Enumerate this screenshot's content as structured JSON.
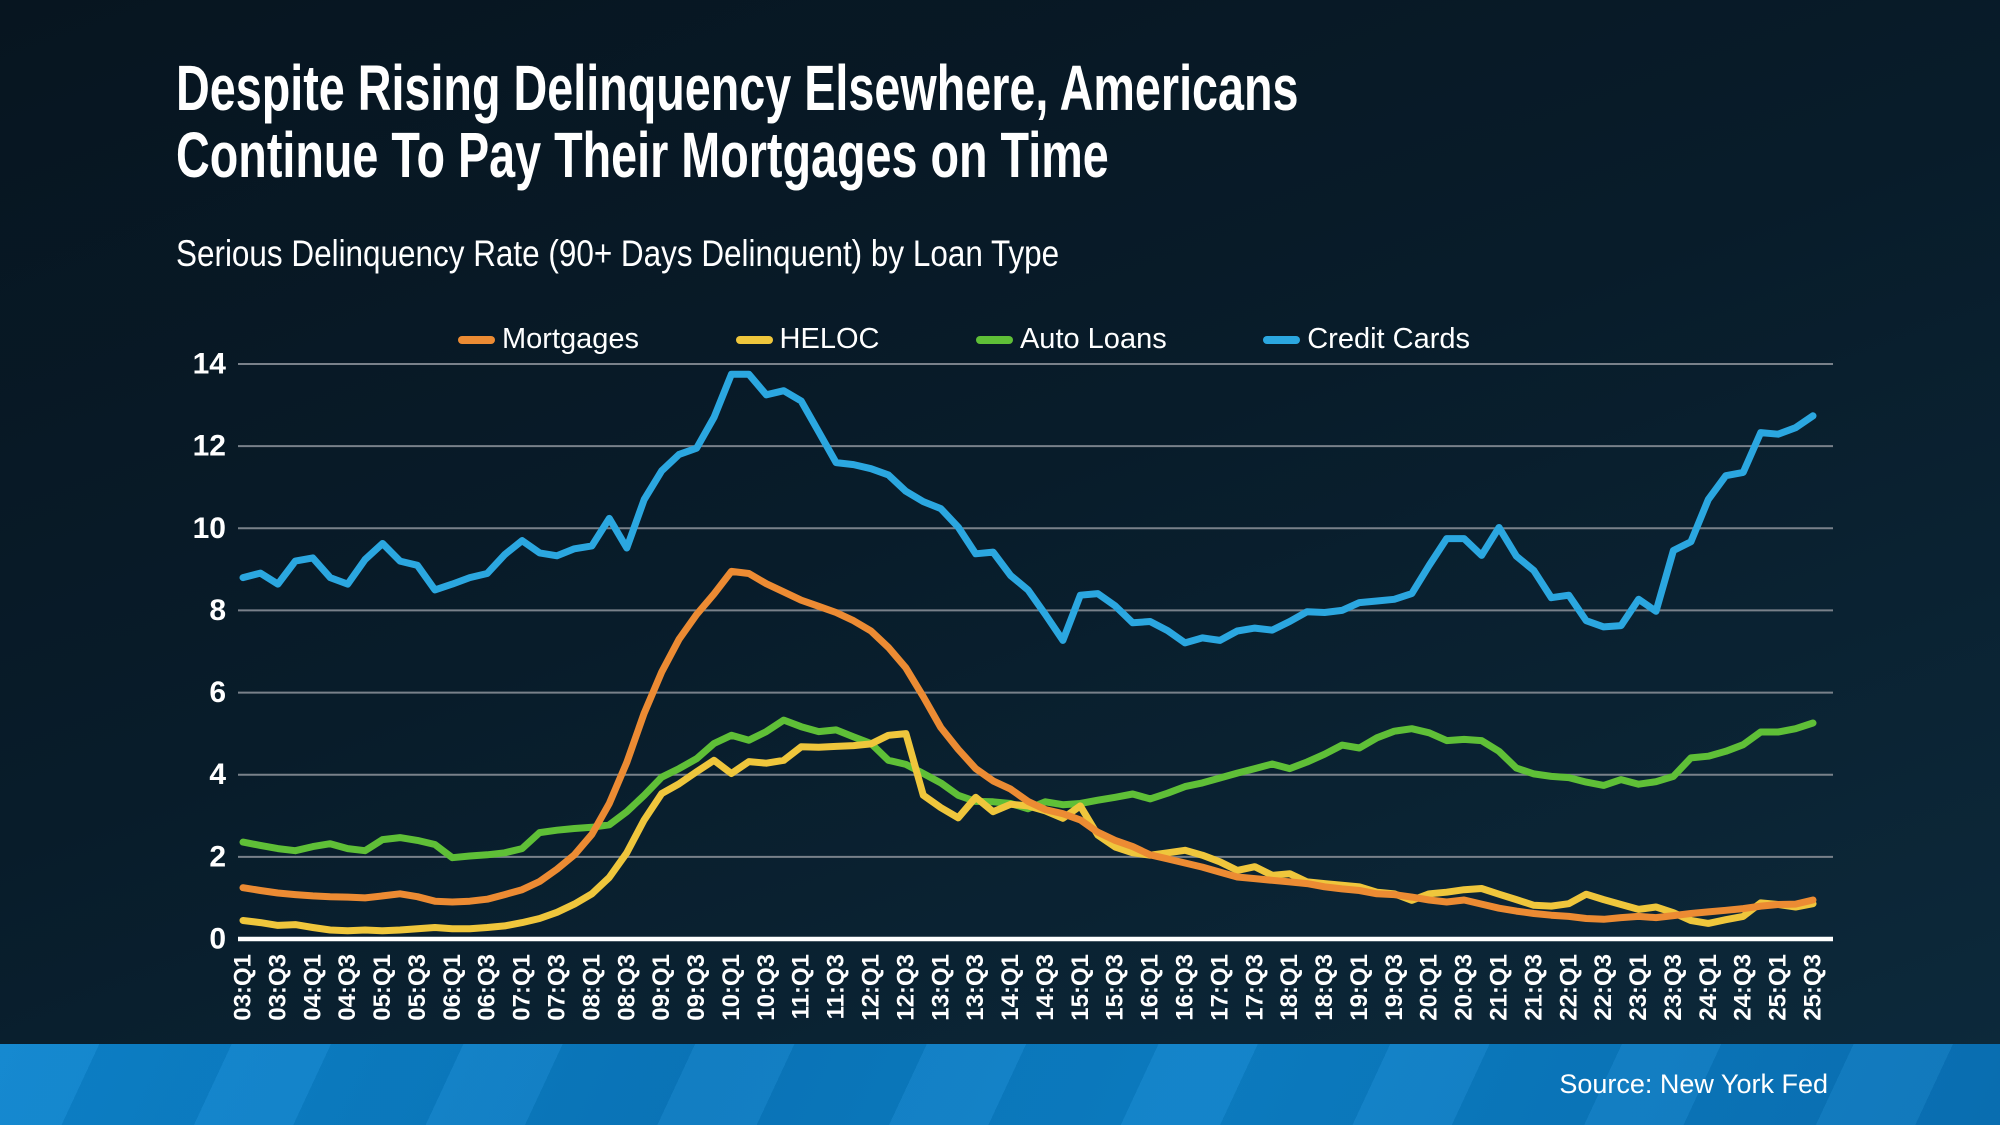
{
  "header": {
    "title_line1": "Despite Rising Delinquency Elsewhere, Americans",
    "title_line2": "Continue To Pay Their Mortgages on Time",
    "subtitle": "Serious Delinquency Rate (90+ Days Delinquent) by Loan Type"
  },
  "source": {
    "text": "Source: New York Fed"
  },
  "colors": {
    "background_top": "#071520",
    "background_bottom": "#0d2a3c",
    "gridline": "#79818a",
    "zero_axis": "#ffffff",
    "footer_strip": "#0a7ac2",
    "text": "#ffffff"
  },
  "chart_data": {
    "type": "line",
    "title": "Serious Delinquency Rate (90+ Days Delinquent) by Loan Type",
    "xlabel": "",
    "ylabel": "",
    "ylim": [
      0,
      14
    ],
    "yticks": [
      0,
      2,
      4,
      6,
      8,
      10,
      12,
      14
    ],
    "grid": "horizontal",
    "legend_position": "top",
    "x_tick_step": 2,
    "categories": [
      "03:Q1",
      "03:Q2",
      "03:Q3",
      "03:Q4",
      "04:Q1",
      "04:Q2",
      "04:Q3",
      "04:Q4",
      "05:Q1",
      "05:Q2",
      "05:Q3",
      "05:Q4",
      "06:Q1",
      "06:Q2",
      "06:Q3",
      "06:Q4",
      "07:Q1",
      "07:Q2",
      "07:Q3",
      "07:Q4",
      "08:Q1",
      "08:Q2",
      "08:Q3",
      "08:Q4",
      "09:Q1",
      "09:Q2",
      "09:Q3",
      "09:Q4",
      "10:Q1",
      "10:Q2",
      "10:Q3",
      "10:Q4",
      "11:Q1",
      "11:Q2",
      "11:Q3",
      "11:Q4",
      "12:Q1",
      "12:Q2",
      "12:Q3",
      "12:Q4",
      "13:Q1",
      "13:Q2",
      "13:Q3",
      "13:Q4",
      "14:Q1",
      "14:Q2",
      "14:Q3",
      "14:Q4",
      "15:Q1",
      "15:Q2",
      "15:Q3",
      "15:Q4",
      "16:Q1",
      "16:Q2",
      "16:Q3",
      "16:Q4",
      "17:Q1",
      "17:Q2",
      "17:Q3",
      "17:Q4",
      "18:Q1",
      "18:Q2",
      "18:Q3",
      "18:Q4",
      "19:Q1",
      "19:Q2",
      "19:Q3",
      "19:Q4",
      "20:Q1",
      "20:Q2",
      "20:Q3",
      "20:Q4",
      "21:Q1",
      "21:Q2",
      "21:Q3",
      "21:Q4",
      "22:Q1",
      "22:Q2",
      "22:Q3",
      "22:Q4",
      "23:Q1",
      "23:Q2",
      "23:Q3",
      "23:Q4",
      "24:Q1",
      "24:Q2",
      "24:Q3",
      "24:Q4",
      "25:Q1",
      "25:Q2",
      "25:Q3"
    ],
    "series": [
      {
        "name": "Mortgages",
        "color": "#EC8B33",
        "values": [
          1.25,
          1.18,
          1.12,
          1.08,
          1.05,
          1.03,
          1.02,
          1.0,
          1.05,
          1.1,
          1.03,
          0.92,
          0.9,
          0.92,
          0.97,
          1.08,
          1.2,
          1.4,
          1.7,
          2.05,
          2.55,
          3.3,
          4.3,
          5.5,
          6.5,
          7.3,
          7.9,
          8.4,
          8.95,
          8.9,
          8.65,
          8.45,
          8.25,
          8.1,
          7.95,
          7.75,
          7.5,
          7.1,
          6.6,
          5.9,
          5.15,
          4.62,
          4.15,
          3.85,
          3.65,
          3.35,
          3.15,
          3.05,
          2.9,
          2.6,
          2.4,
          2.25,
          2.05,
          1.95,
          1.85,
          1.75,
          1.63,
          1.51,
          1.47,
          1.43,
          1.39,
          1.35,
          1.27,
          1.22,
          1.18,
          1.1,
          1.08,
          1.02,
          0.95,
          0.9,
          0.95,
          0.85,
          0.75,
          0.68,
          0.62,
          0.58,
          0.55,
          0.5,
          0.48,
          0.52,
          0.55,
          0.52,
          0.57,
          0.62,
          0.66,
          0.7,
          0.74,
          0.8,
          0.84,
          0.85,
          0.95
        ]
      },
      {
        "name": "HELOC",
        "color": "#EFC63C",
        "values": [
          0.45,
          0.4,
          0.33,
          0.35,
          0.28,
          0.22,
          0.2,
          0.22,
          0.2,
          0.22,
          0.25,
          0.28,
          0.25,
          0.25,
          0.28,
          0.32,
          0.4,
          0.5,
          0.65,
          0.85,
          1.1,
          1.5,
          2.1,
          2.9,
          3.54,
          3.78,
          4.07,
          4.35,
          4.03,
          4.32,
          4.28,
          4.35,
          4.68,
          4.67,
          4.69,
          4.71,
          4.75,
          4.96,
          5.0,
          3.5,
          3.2,
          2.95,
          3.45,
          3.1,
          3.28,
          3.24,
          3.12,
          2.94,
          3.24,
          2.53,
          2.24,
          2.1,
          2.04,
          2.1,
          2.16,
          2.04,
          1.88,
          1.67,
          1.76,
          1.55,
          1.59,
          1.39,
          1.35,
          1.31,
          1.27,
          1.14,
          1.1,
          0.94,
          1.1,
          1.14,
          1.2,
          1.23,
          1.09,
          0.96,
          0.82,
          0.8,
          0.86,
          1.09,
          0.96,
          0.84,
          0.72,
          0.78,
          0.64,
          0.45,
          0.38,
          0.47,
          0.55,
          0.88,
          0.84,
          0.78,
          0.86
        ]
      },
      {
        "name": "Auto Loans",
        "color": "#5FBF37",
        "values": [
          2.36,
          2.28,
          2.2,
          2.15,
          2.25,
          2.32,
          2.2,
          2.15,
          2.42,
          2.47,
          2.4,
          2.3,
          1.98,
          2.02,
          2.05,
          2.1,
          2.2,
          2.59,
          2.65,
          2.69,
          2.72,
          2.78,
          3.1,
          3.5,
          3.94,
          4.15,
          4.39,
          4.76,
          4.96,
          4.84,
          5.05,
          5.33,
          5.17,
          5.05,
          5.09,
          4.92,
          4.76,
          4.35,
          4.25,
          4.03,
          3.8,
          3.5,
          3.35,
          3.34,
          3.3,
          3.17,
          3.34,
          3.27,
          3.3,
          3.38,
          3.45,
          3.53,
          3.41,
          3.55,
          3.71,
          3.8,
          3.92,
          4.04,
          4.15,
          4.26,
          4.15,
          4.31,
          4.5,
          4.72,
          4.65,
          4.9,
          5.06,
          5.12,
          5.02,
          4.83,
          4.86,
          4.83,
          4.57,
          4.16,
          4.02,
          3.96,
          3.93,
          3.82,
          3.74,
          3.88,
          3.77,
          3.83,
          3.96,
          4.41,
          4.45,
          4.57,
          4.73,
          5.04,
          5.04,
          5.12,
          5.26
        ]
      },
      {
        "name": "Credit Cards",
        "color": "#2BA7E0",
        "values": [
          8.8,
          8.91,
          8.64,
          9.2,
          9.28,
          8.8,
          8.64,
          9.24,
          9.63,
          9.2,
          9.1,
          8.5,
          8.64,
          8.8,
          8.9,
          9.36,
          9.7,
          9.4,
          9.33,
          9.5,
          9.57,
          10.24,
          9.52,
          10.7,
          11.4,
          11.8,
          11.95,
          12.7,
          13.75,
          13.75,
          13.25,
          13.35,
          13.1,
          12.35,
          11.6,
          11.55,
          11.45,
          11.3,
          10.9,
          10.65,
          10.48,
          10.03,
          9.38,
          9.42,
          8.85,
          8.5,
          7.9,
          7.27,
          8.37,
          8.41,
          8.11,
          7.7,
          7.73,
          7.51,
          7.21,
          7.33,
          7.27,
          7.5,
          7.57,
          7.52,
          7.73,
          7.97,
          7.95,
          8.0,
          8.19,
          8.23,
          8.27,
          8.41,
          9.1,
          9.75,
          9.75,
          9.34,
          10.02,
          9.32,
          8.97,
          8.31,
          8.37,
          7.75,
          7.6,
          7.63,
          8.27,
          7.98,
          9.46,
          9.67,
          10.7,
          11.28,
          11.36,
          12.33,
          12.29,
          12.45,
          12.74
        ]
      }
    ]
  }
}
